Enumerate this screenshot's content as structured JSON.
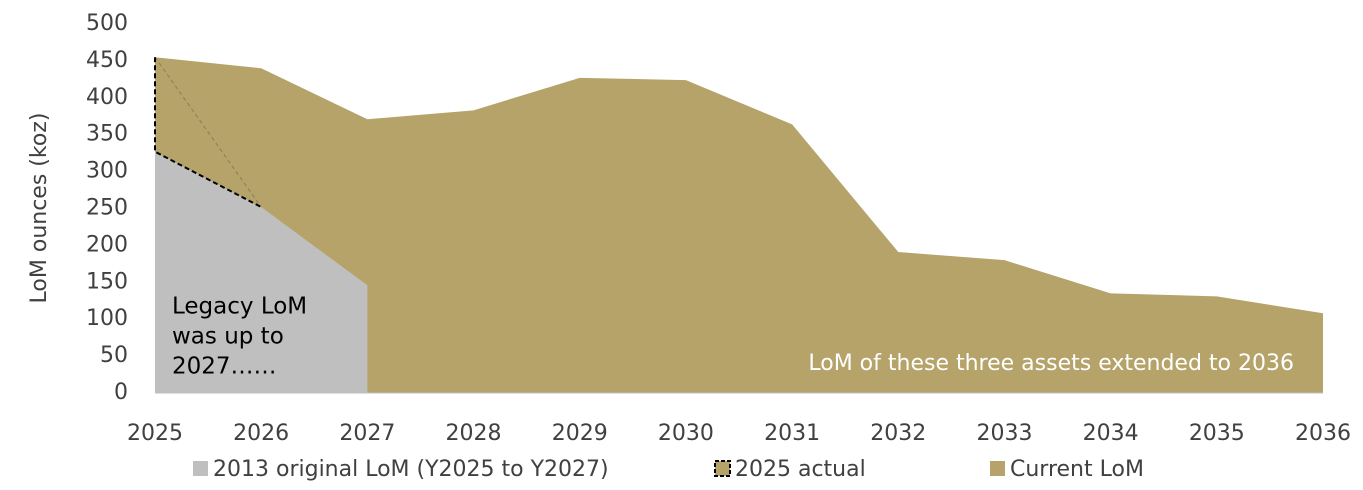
{
  "chart_data": {
    "type": "area",
    "y_label": "LoM ounces (koz)",
    "categories": [
      "2025",
      "2026",
      "2027",
      "2028",
      "2029",
      "2030",
      "2031",
      "2032",
      "2033",
      "2034",
      "2035",
      "2036"
    ],
    "series": [
      {
        "name": "Current LoM",
        "color": "#b5a36a",
        "values": [
          455,
          440,
          371,
          383,
          427,
          424,
          364,
          191,
          180,
          135,
          131,
          108
        ]
      },
      {
        "name": "2013 original LoM (Y2025 to Y2027)",
        "color": "#bfbfbf",
        "values": [
          327,
          252,
          146,
          null,
          null,
          null,
          null,
          null,
          null,
          null,
          null,
          null
        ]
      },
      {
        "name": "2025 actual",
        "color": "#b5a36a",
        "values": [
          455,
          252,
          null,
          null,
          null,
          null,
          null,
          null,
          null,
          null,
          null,
          null
        ]
      }
    ],
    "legend_order": [
      1,
      2,
      0
    ],
    "ylim": [
      0,
      500
    ],
    "yticks": [
      0,
      50,
      100,
      150,
      200,
      250,
      300,
      350,
      400,
      450,
      500
    ],
    "annotations": [
      {
        "lines": [
          "Legacy LoM",
          "was up to",
          "2027……"
        ]
      },
      {
        "lines": [
          "LoM of these three assets extended to 2036"
        ]
      }
    ]
  }
}
